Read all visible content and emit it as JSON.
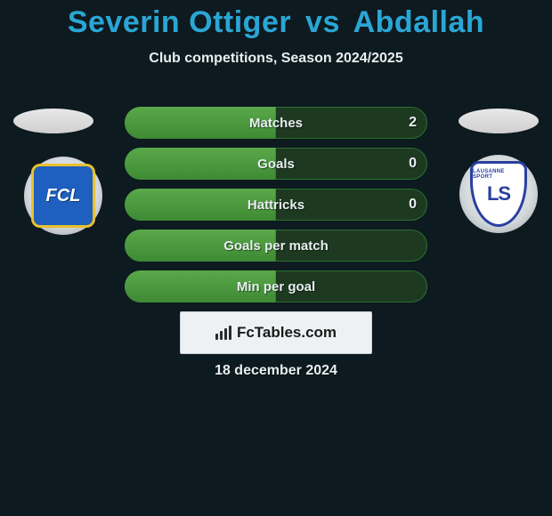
{
  "title": {
    "player1": "Severin Ottiger",
    "vs": "vs",
    "player2": "Abdallah",
    "color": "#2aa6d4",
    "fontsize": 34
  },
  "subtitle": {
    "text": "Club competitions, Season 2024/2025",
    "color": "#e8eef0",
    "fontsize": 16
  },
  "background_color": "#0d1a1f",
  "avatars": {
    "fill": "#e0e0e0"
  },
  "clubs": {
    "left": {
      "label": "FCL",
      "bg": "#1e5fbf",
      "border": "#e9c02c",
      "text_color": "#ffffff"
    },
    "right": {
      "arc": "LAUSANNE SPORT",
      "mono": "LS",
      "border": "#2a3fa0",
      "text_color": "#2a3fa0"
    }
  },
  "bars": {
    "track_bg": "#1d3a21",
    "track_border": "#2b6f2f",
    "fill_gradient_top": "#5aa84a",
    "fill_gradient_bottom": "#3e8a34",
    "label_color": "#e8eef0",
    "value_color": "#e8eef0",
    "label_fontsize": 15,
    "value_fontsize": 16,
    "rows": [
      {
        "label": "Matches",
        "value": "2",
        "fill_pct": 50
      },
      {
        "label": "Goals",
        "value": "0",
        "fill_pct": 50
      },
      {
        "label": "Hattricks",
        "value": "0",
        "fill_pct": 50
      },
      {
        "label": "Goals per match",
        "value": "",
        "fill_pct": 50
      },
      {
        "label": "Min per goal",
        "value": "",
        "fill_pct": 50
      }
    ]
  },
  "brand": {
    "text": "FcTables.com",
    "box_bg": "#eef1f3",
    "box_border": "#c9cfd4",
    "icon_color": "#2b2b2b",
    "text_color": "#1a1a1a",
    "fontsize": 17
  },
  "date": {
    "text": "18 december 2024",
    "color": "#e8eef0",
    "fontsize": 16
  }
}
